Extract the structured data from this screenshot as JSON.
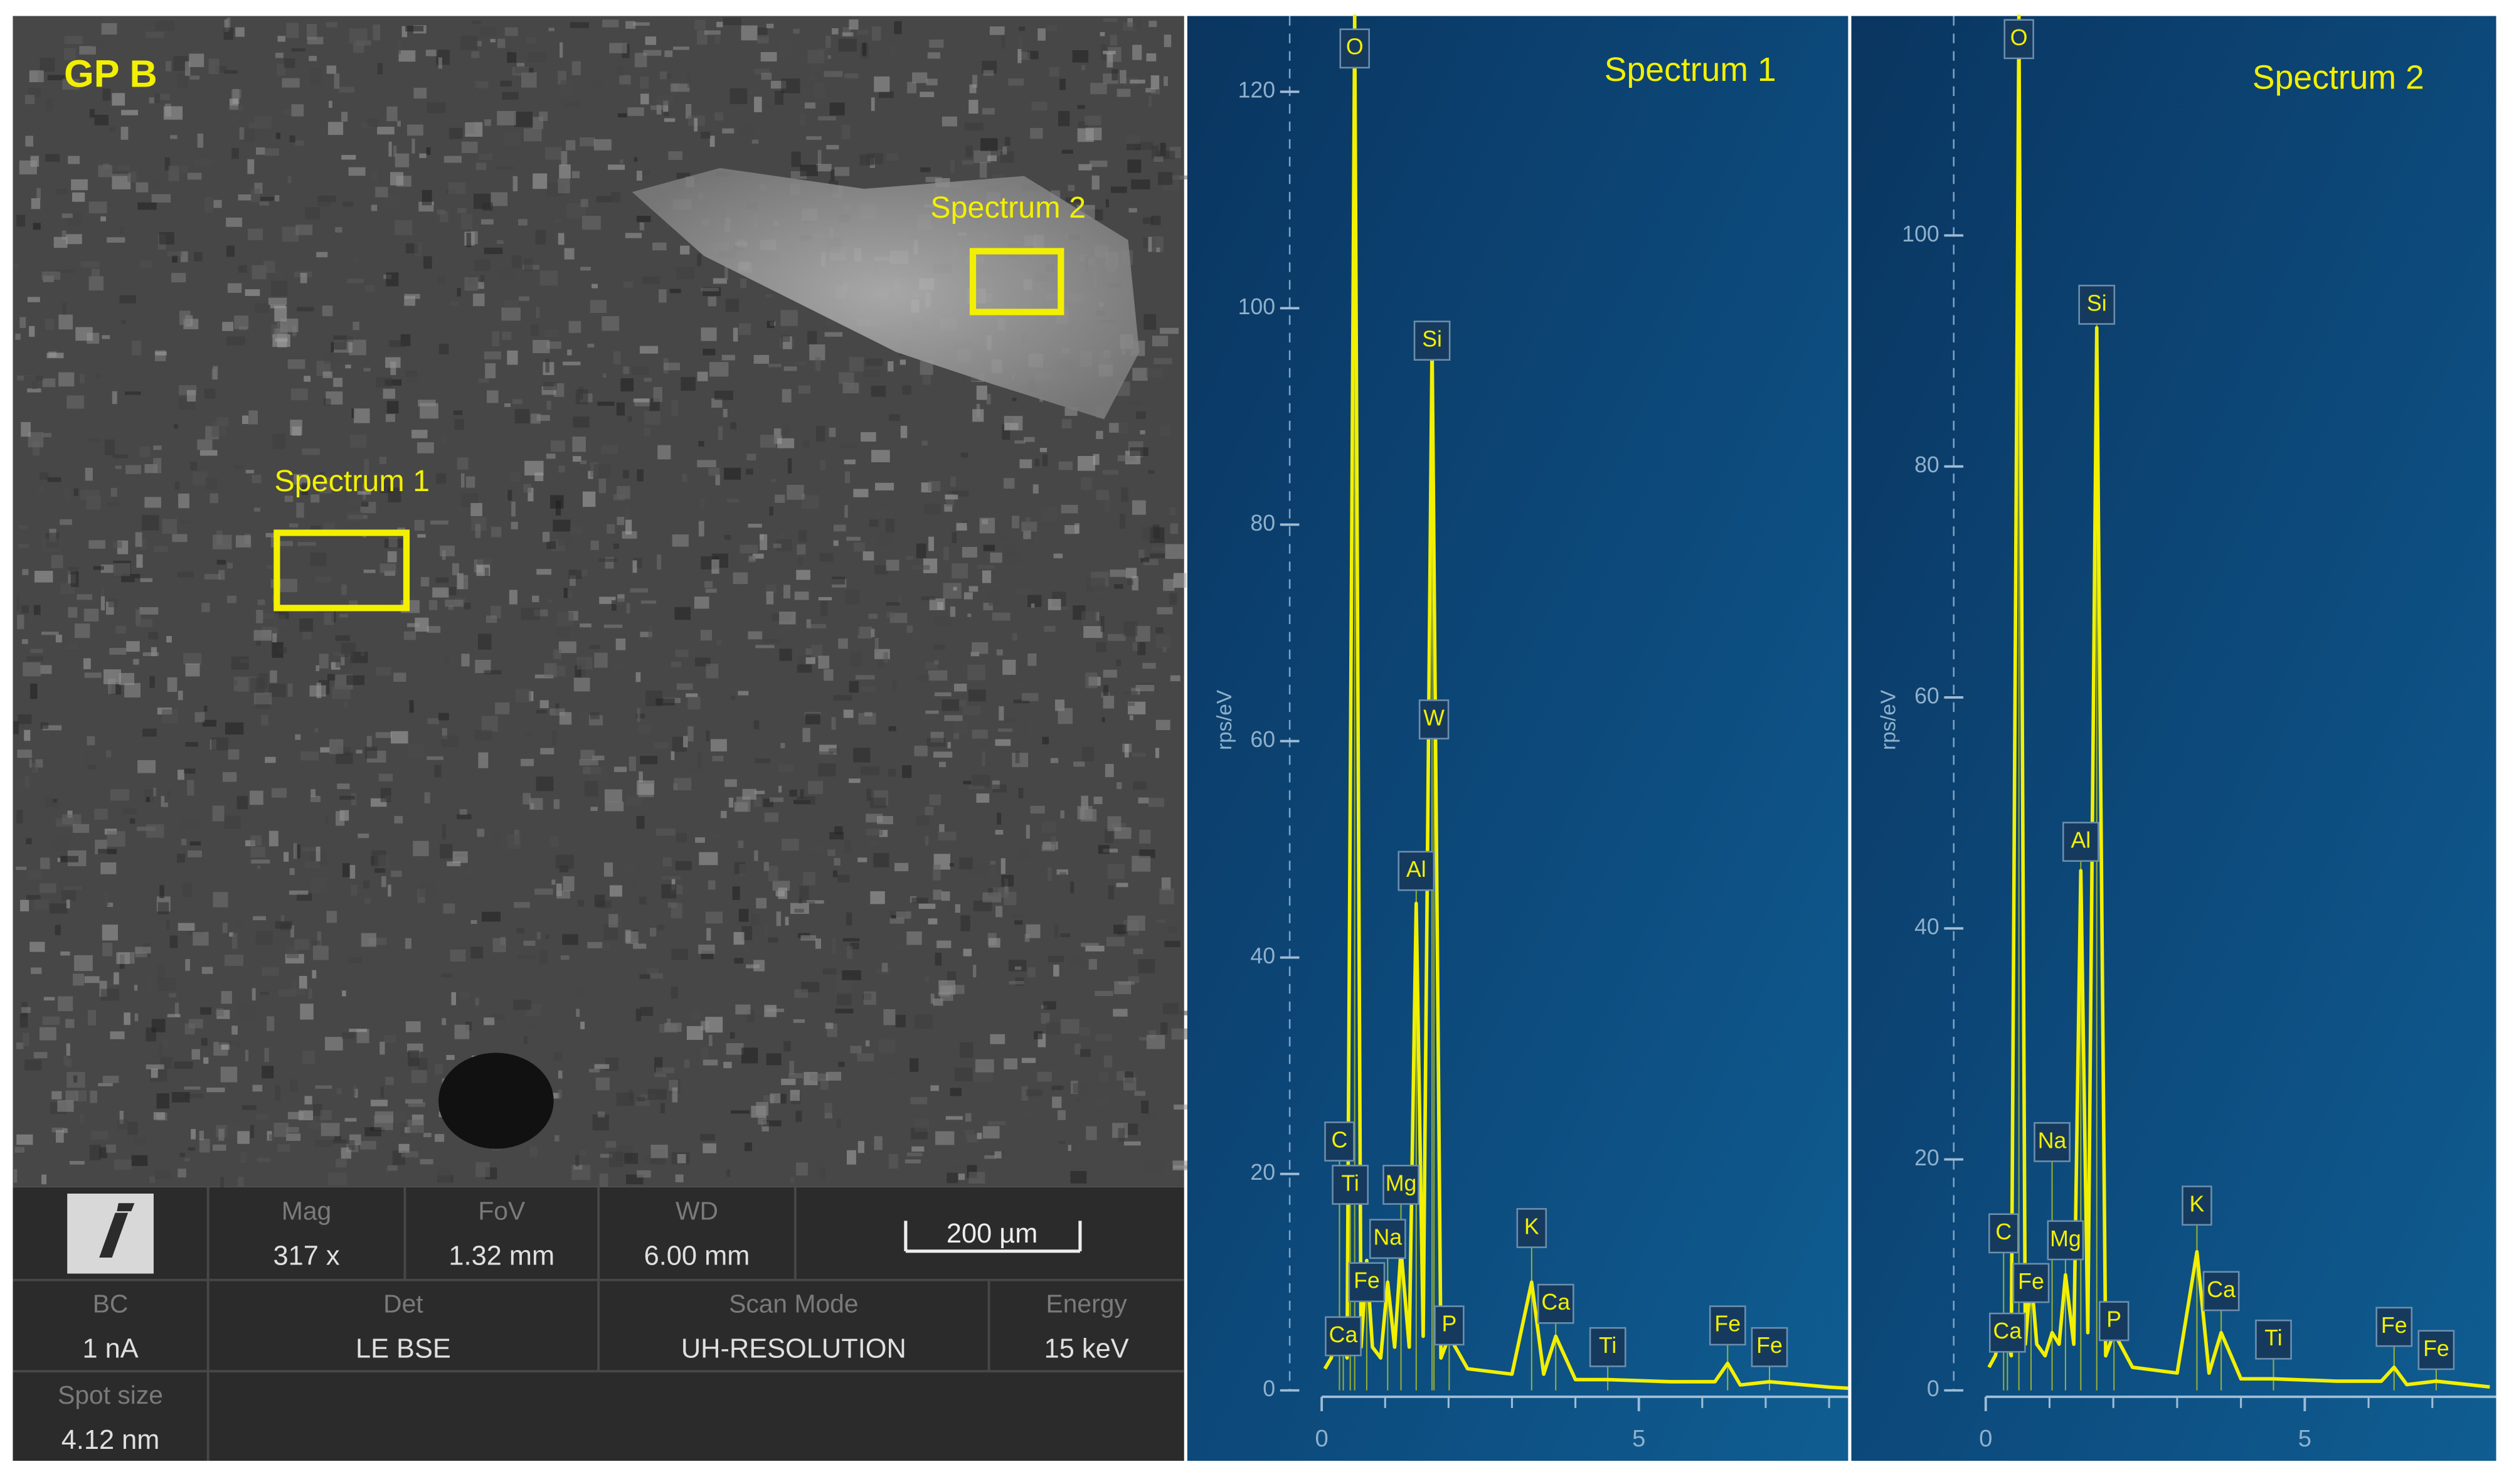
{
  "sem": {
    "label": "GP B",
    "regions": [
      "Spectrum 1",
      "Spectrum 2"
    ],
    "scale_bar": "200 µm",
    "info": [
      {
        "name": "Mag",
        "value": "317 x"
      },
      {
        "name": "FoV",
        "value": "1.32 mm"
      },
      {
        "name": "WD",
        "value": "6.00 mm"
      },
      {
        "name": "BC",
        "value": "1 nA"
      },
      {
        "name": "Det",
        "value": "LE BSE"
      },
      {
        "name": "Scan Mode",
        "value": "UH-RESOLUTION"
      },
      {
        "name": "Energy",
        "value": "15 keV"
      },
      {
        "name": "Spot size",
        "value": "4.12 nm"
      }
    ]
  },
  "chart_data": [
    {
      "type": "line",
      "title": "Spectrum 1",
      "ylabel": "rps/eV",
      "color": "#f2f000",
      "x": [
        0.05,
        0.15,
        0.28,
        0.4,
        0.52,
        0.62,
        0.71,
        0.8,
        0.93,
        1.04,
        1.15,
        1.25,
        1.38,
        1.49,
        1.6,
        1.74,
        1.88,
        2.01,
        2.3,
        3.0,
        3.31,
        3.5,
        3.69,
        4.0,
        4.51,
        5.5,
        6.2,
        6.4,
        6.6,
        7.06,
        8.0,
        8.3
      ],
      "values": [
        2,
        3,
        6,
        3,
        127,
        4,
        12,
        4,
        3,
        10,
        4,
        13,
        4,
        45,
        5,
        97,
        3,
        5,
        2,
        1.5,
        10,
        1.5,
        5,
        1,
        1,
        0.8,
        0.8,
        2.5,
        0.5,
        0.8,
        0.3,
        0.2
      ],
      "peaks": [
        {
          "label": "O",
          "x": 0.52,
          "value": 124
        },
        {
          "label": "Si",
          "x": 1.74,
          "value": 97
        },
        {
          "label": "W",
          "x": 1.77,
          "value": 62
        },
        {
          "label": "Al",
          "x": 1.49,
          "value": 48
        },
        {
          "label": "C",
          "x": 0.28,
          "value": 23
        },
        {
          "label": "Ti",
          "x": 0.45,
          "value": 19
        },
        {
          "label": "Mg",
          "x": 1.25,
          "value": 19
        },
        {
          "label": "Na",
          "x": 1.04,
          "value": 14
        },
        {
          "label": "Fe",
          "x": 0.71,
          "value": 10
        },
        {
          "label": "Ca",
          "x": 0.34,
          "value": 5
        },
        {
          "label": "P",
          "x": 2.01,
          "value": 6
        },
        {
          "label": "K",
          "x": 3.31,
          "value": 15
        },
        {
          "label": "Ca",
          "x": 3.69,
          "value": 8
        },
        {
          "label": "Ti",
          "x": 4.51,
          "value": 4
        },
        {
          "label": "Fe",
          "x": 6.4,
          "value": 6
        },
        {
          "label": "Fe",
          "x": 7.06,
          "value": 4
        }
      ],
      "xlim": [
        0,
        8.3
      ],
      "ylim": [
        0,
        127
      ],
      "xticks": [
        0,
        5
      ],
      "xminorticks": [
        1,
        2,
        3,
        4,
        6,
        7,
        8
      ],
      "yticks": [
        0,
        20,
        40,
        60,
        80,
        100,
        120
      ]
    },
    {
      "type": "line",
      "title": "Spectrum 2",
      "ylabel": "rps/eV",
      "color": "#f2f000",
      "x": [
        0.05,
        0.15,
        0.28,
        0.4,
        0.52,
        0.62,
        0.71,
        0.8,
        0.93,
        1.04,
        1.15,
        1.25,
        1.38,
        1.49,
        1.6,
        1.74,
        1.88,
        2.01,
        2.3,
        3.0,
        3.31,
        3.5,
        3.69,
        4.0,
        4.51,
        5.5,
        6.2,
        6.4,
        6.6,
        7.06,
        7.9
      ],
      "values": [
        2,
        3,
        6,
        3,
        119,
        4,
        10,
        4,
        3,
        5,
        4,
        10,
        4,
        45,
        5,
        92,
        3,
        5,
        2,
        1.5,
        12,
        1.5,
        5,
        1,
        1,
        0.8,
        0.8,
        2,
        0.5,
        0.8,
        0.3
      ],
      "peaks": [
        {
          "label": "O",
          "x": 0.52,
          "value": 117
        },
        {
          "label": "Si",
          "x": 1.74,
          "value": 94
        },
        {
          "label": "Al",
          "x": 1.49,
          "value": 47.5
        },
        {
          "label": "Na",
          "x": 1.04,
          "value": 21.5
        },
        {
          "label": "C",
          "x": 0.28,
          "value": 13.6
        },
        {
          "label": "Mg",
          "x": 1.25,
          "value": 13
        },
        {
          "label": "Fe",
          "x": 0.71,
          "value": 9.3
        },
        {
          "label": "Ca",
          "x": 0.34,
          "value": 5
        },
        {
          "label": "P",
          "x": 2.01,
          "value": 6
        },
        {
          "label": "K",
          "x": 3.31,
          "value": 16
        },
        {
          "label": "Ca",
          "x": 3.69,
          "value": 8.6
        },
        {
          "label": "Ti",
          "x": 4.51,
          "value": 4.4
        },
        {
          "label": "Fe",
          "x": 6.4,
          "value": 5.5
        },
        {
          "label": "Fe",
          "x": 7.06,
          "value": 3.5
        }
      ],
      "xlim": [
        0,
        8
      ],
      "ylim": [
        0,
        119
      ],
      "xticks": [
        0,
        5
      ],
      "xminorticks": [
        1,
        2,
        3,
        4,
        6,
        7
      ],
      "yticks": [
        0,
        20,
        40,
        60,
        80,
        100
      ]
    }
  ]
}
